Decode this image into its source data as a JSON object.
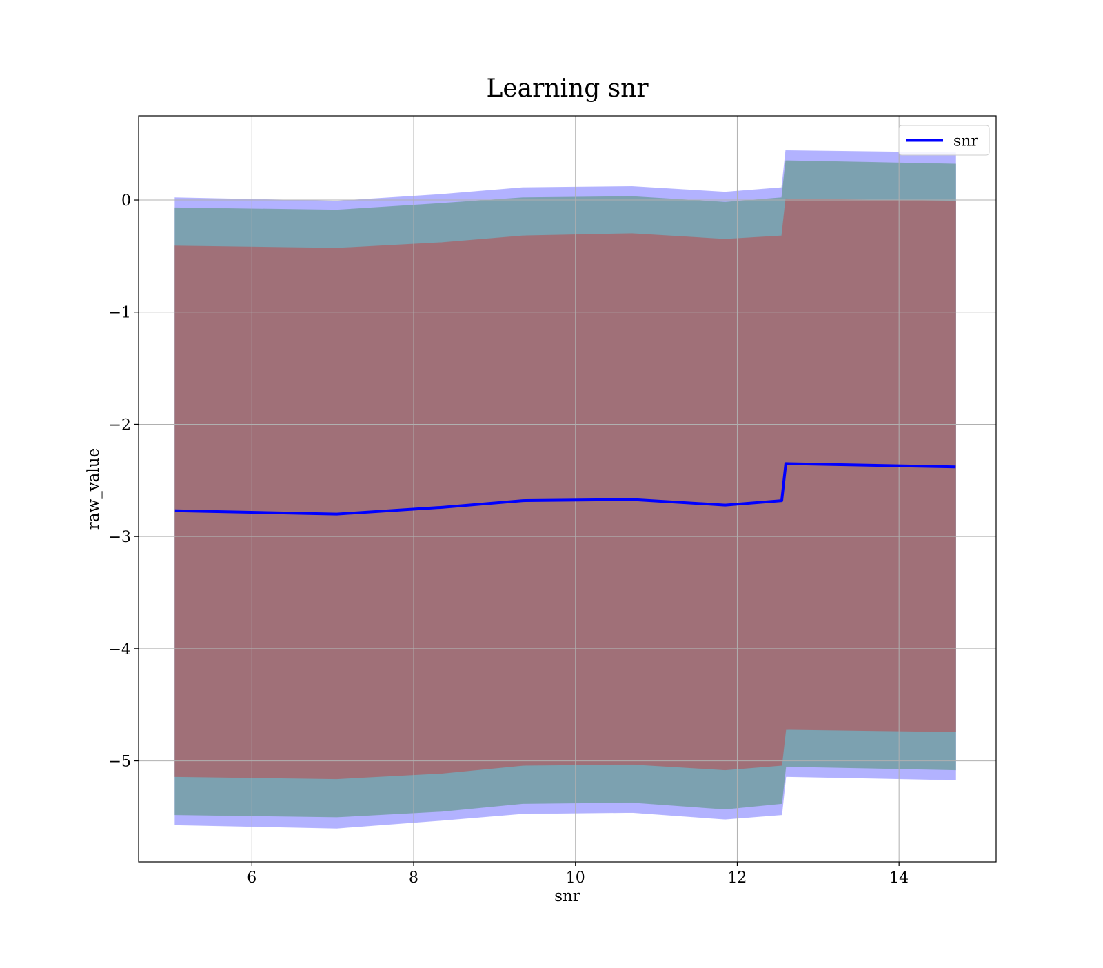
{
  "chart_data": {
    "type": "line",
    "title": "Learning snr",
    "xlabel": "snr",
    "ylabel": "raw_value",
    "xlim": [
      4.6,
      15.2
    ],
    "ylim": [
      -5.9,
      0.75
    ],
    "x_ticks": [
      6,
      8,
      10,
      12,
      14
    ],
    "y_ticks": [
      0,
      -1,
      -2,
      -3,
      -4,
      -5
    ],
    "x_tick_labels": [
      "6",
      "8",
      "10",
      "12",
      "14"
    ],
    "y_tick_labels": [
      "0",
      "−1",
      "−2",
      "−3",
      "−4",
      "−5"
    ],
    "grid": true,
    "legend_position": "top-right",
    "x": [
      5.05,
      7.05,
      8.35,
      9.35,
      10.7,
      11.85,
      12.55,
      12.6,
      14.7
    ],
    "series": [
      {
        "name": "snr",
        "values": [
          -2.77,
          -2.8,
          -2.74,
          -2.68,
          -2.67,
          -2.72,
          -2.68,
          -2.35,
          -2.38
        ]
      }
    ],
    "bands": [
      {
        "upper": [
          0.02,
          -0.01,
          0.05,
          0.11,
          0.12,
          0.07,
          0.11,
          0.44,
          0.42
        ],
        "lower": [
          -5.57,
          -5.6,
          -5.53,
          -5.47,
          -5.46,
          -5.52,
          -5.48,
          -5.14,
          -5.17
        ]
      },
      {
        "upper": [
          -0.07,
          -0.09,
          -0.03,
          0.02,
          0.03,
          -0.02,
          0.02,
          0.35,
          0.32
        ],
        "lower": [
          -5.48,
          -5.5,
          -5.45,
          -5.38,
          -5.37,
          -5.43,
          -5.38,
          -5.05,
          -5.08
        ]
      },
      {
        "upper": [
          -0.41,
          -0.43,
          -0.38,
          -0.32,
          -0.3,
          -0.35,
          -0.32,
          0.01,
          -0.01
        ],
        "lower": [
          -5.14,
          -5.16,
          -5.11,
          -5.04,
          -5.03,
          -5.08,
          -5.04,
          -4.72,
          -4.74
        ]
      }
    ],
    "colors": {
      "line": "#0000ff",
      "band_outer": "#b2b2ff",
      "band_middle": "#7ca1b0",
      "band_inner": "#a07078",
      "grid": "#b0b0b0"
    }
  }
}
